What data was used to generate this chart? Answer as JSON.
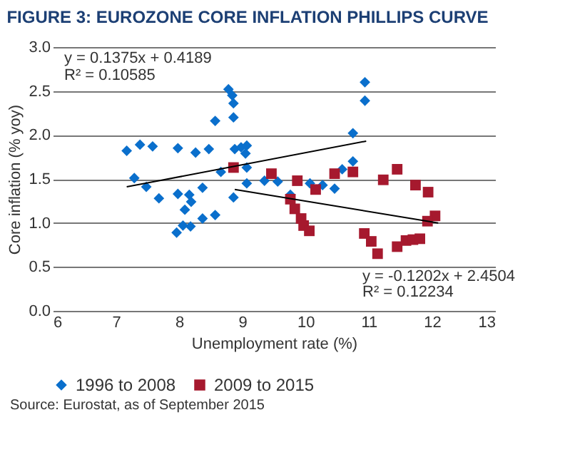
{
  "chart_data": {
    "type": "scatter",
    "title": "FIGURE 3: EUROZONE CORE INFLATION PHILLIPS CURVE",
    "xlabel": "Unemployment rate (%)",
    "ylabel": "Core inflation (% yoy)",
    "xlim": [
      6,
      13
    ],
    "xticks": [
      6,
      7,
      8,
      9,
      10,
      11,
      12,
      13
    ],
    "ylim": [
      0,
      3
    ],
    "yticks": [
      {
        "value": 0,
        "label": "0.0"
      },
      {
        "value": 0.5,
        "label": "0.5"
      },
      {
        "value": 1,
        "label": "1.0"
      },
      {
        "value": 1.5,
        "label": "1.5"
      },
      {
        "value": 2,
        "label": "2.0"
      },
      {
        "value": 2.5,
        "label": "2.5"
      },
      {
        "value": 3,
        "label": "3.0"
      }
    ],
    "grid": "y",
    "legend": "bottom",
    "series": [
      {
        "name": "1996 to 2008",
        "marker": "diamond",
        "color": "#0a6fcc",
        "x": [
          7.17,
          7.38,
          7.58,
          7.29,
          7.48,
          7.68,
          7.98,
          7.98,
          8.26,
          8.47,
          8.16,
          8.19,
          8.09,
          8.37,
          8.37,
          8.57,
          7.96,
          8.06,
          8.18,
          8.57,
          8.78,
          8.84,
          8.86,
          8.86,
          8.88,
          8.98,
          9.07,
          9.05,
          8.66,
          9.07,
          9.07,
          8.86,
          9.35,
          9.56,
          9.76,
          10.07,
          10.27,
          10.46,
          10.58,
          10.75,
          10.75,
          10.94,
          10.94
        ],
        "values": [
          1.82,
          1.89,
          1.87,
          1.51,
          1.41,
          1.28,
          1.85,
          1.33,
          1.8,
          1.84,
          1.32,
          1.24,
          1.15,
          1.4,
          1.05,
          1.09,
          0.89,
          0.97,
          0.96,
          2.16,
          2.52,
          2.45,
          2.36,
          2.2,
          1.84,
          1.86,
          1.88,
          1.79,
          1.58,
          1.63,
          1.45,
          1.29,
          1.48,
          1.47,
          1.32,
          1.45,
          1.43,
          1.39,
          1.61,
          1.7,
          2.02,
          2.39,
          2.6
        ]
      },
      {
        "name": "2009 to 2015",
        "marker": "square",
        "color": "#a6192e",
        "x": [
          8.86,
          9.46,
          9.87,
          9.76,
          9.83,
          9.93,
          9.97,
          10.06,
          10.16,
          10.46,
          10.75,
          11.23,
          11.45,
          11.74,
          11.94,
          12.05,
          11.93,
          10.93,
          11.04,
          11.14,
          11.45,
          11.59,
          11.7,
          11.81
        ],
        "values": [
          1.63,
          1.56,
          1.48,
          1.27,
          1.16,
          1.05,
          0.97,
          0.91,
          1.38,
          1.56,
          1.58,
          1.49,
          1.61,
          1.43,
          1.35,
          1.08,
          1.02,
          0.88,
          0.79,
          0.65,
          0.73,
          0.8,
          0.81,
          0.82
        ]
      },
      {
        "type": "line",
        "color": "#000000",
        "x": [
          7.17,
          10.96
        ],
        "values": [
          1.41,
          1.93
        ]
      },
      {
        "type": "line",
        "color": "#000000",
        "x": [
          8.88,
          12.1
        ],
        "values": [
          1.38,
          1.0
        ]
      }
    ],
    "annotations": [
      "y = 0.1375x + 0.4189",
      "R² = 0.10585",
      "y = -0.1202x + 2.4504",
      "R² = 0.12234",
      "Source: Eurostat, as of September 2015"
    ]
  }
}
